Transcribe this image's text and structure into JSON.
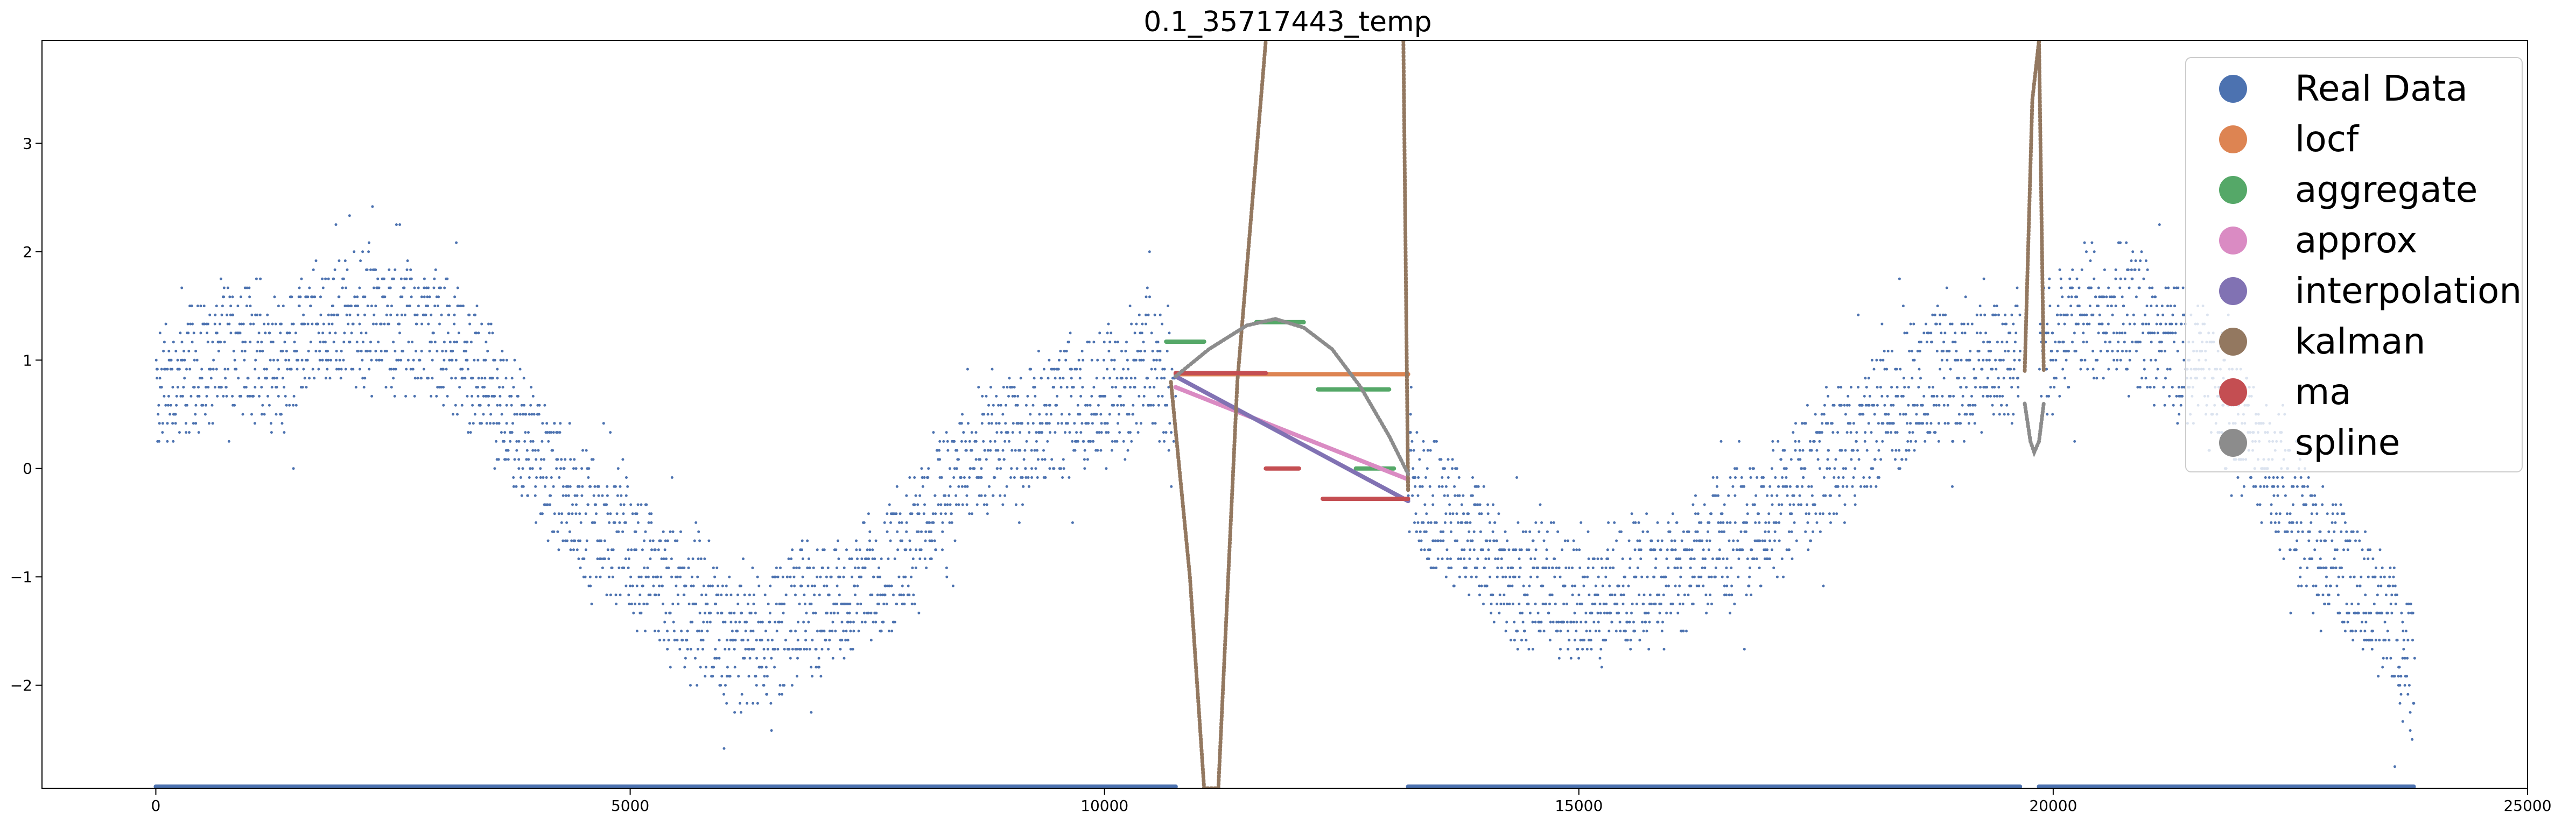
{
  "chart_data": {
    "type": "scatter",
    "title": "0.1_35717443_temp",
    "xlabel": "",
    "ylabel": "",
    "xlim": [
      -1200,
      25000
    ],
    "ylim": [
      -2.95,
      3.95
    ],
    "x_ticks": [
      0,
      5000,
      10000,
      15000,
      20000,
      25000
    ],
    "y_ticks": [
      -2,
      -1,
      0,
      1,
      2,
      3
    ],
    "x_tick_labels": [
      "0",
      "5000",
      "10000",
      "15000",
      "20000",
      "25000"
    ],
    "y_tick_labels": [
      "−2",
      "−1",
      "0",
      "1",
      "2",
      "3"
    ],
    "grid": false,
    "legend_position": "top-right",
    "legend": [
      "Real Data",
      "locf",
      "aggregate",
      "approx",
      "interpolation",
      "kalman",
      "ma",
      "spline"
    ],
    "colors": {
      "Real Data": "#4c72b0",
      "locf": "#dd8452",
      "aggregate": "#55a868",
      "approx": "#da8bc3",
      "interpolation": "#8172b3",
      "kalman": "#937860",
      "ma": "#c44e52",
      "spline": "#8c8c8c"
    },
    "missing_mask_row": {
      "y": -2.95,
      "segments": [
        [
          0,
          10750
        ],
        [
          13200,
          19650
        ],
        [
          19850,
          23800
        ]
      ]
    },
    "real_data_trend": {
      "x": [
        0,
        300,
        600,
        900,
        1300,
        1700,
        2100,
        2500,
        2900,
        3300,
        3700,
        4100,
        4500,
        4900,
        5300,
        5700,
        6100,
        6500,
        6900,
        7300,
        7700,
        8100,
        8500,
        8900,
        9300,
        9700,
        10100,
        10500,
        10750,
        13200,
        13500,
        13900,
        14300,
        14700,
        15100,
        15500,
        15900,
        16300,
        16700,
        17100,
        17500,
        17900,
        18300,
        18700,
        19100,
        19500,
        19900,
        20300,
        20700,
        21100,
        21500,
        21900,
        22300,
        22700,
        23100,
        23500,
        23800
      ],
      "y": [
        0.7,
        0.9,
        1.0,
        1.2,
        0.9,
        1.3,
        1.4,
        1.35,
        1.2,
        1.0,
        0.5,
        0.0,
        -0.4,
        -0.7,
        -1.0,
        -1.4,
        -1.6,
        -1.5,
        -1.3,
        -1.2,
        -0.9,
        -0.5,
        0.0,
        0.2,
        0.4,
        0.6,
        0.7,
        0.9,
        0.8,
        -0.2,
        -0.4,
        -0.6,
        -1.0,
        -1.1,
        -1.2,
        -1.1,
        -1.0,
        -0.8,
        -0.6,
        -0.4,
        0.0,
        0.3,
        0.6,
        0.8,
        0.9,
        1.0,
        1.1,
        1.4,
        1.5,
        1.2,
        1.0,
        0.5,
        0.0,
        -0.6,
        -1.0,
        -1.4,
        -1.9
      ]
    },
    "series": [
      {
        "name": "locf",
        "segments": [
          {
            "x": [
              10750,
              13200
            ],
            "y": [
              0.87,
              0.87
            ]
          }
        ]
      },
      {
        "name": "aggregate",
        "segments": [
          {
            "x": [
              10650,
              11050
            ],
            "y": [
              1.17,
              1.17
            ]
          },
          {
            "x": [
              11600,
              12100
            ],
            "y": [
              1.35,
              1.35
            ]
          },
          {
            "x": [
              12250,
              13000
            ],
            "y": [
              0.73,
              0.73
            ]
          },
          {
            "x": [
              12650,
              13050
            ],
            "y": [
              0.0,
              0.0
            ]
          }
        ]
      },
      {
        "name": "approx",
        "segments": [
          {
            "x": [
              10750,
              13200
            ],
            "y": [
              0.75,
              -0.1
            ]
          }
        ]
      },
      {
        "name": "interpolation",
        "segments": [
          {
            "x": [
              10750,
              13200
            ],
            "y": [
              0.85,
              -0.3
            ]
          }
        ]
      },
      {
        "name": "kalman",
        "segments": [
          {
            "x": [
              10700,
              10900,
              11050,
              11200,
              11400,
              11700
            ],
            "y": [
              0.8,
              -1.0,
              -2.95,
              -2.95,
              0.8,
              3.95
            ]
          },
          {
            "x": [
              13150,
              13200
            ],
            "y": [
              3.95,
              -0.2
            ]
          },
          {
            "x": [
              19700,
              19780,
              19850,
              19900
            ],
            "y": [
              0.9,
              3.4,
              3.95,
              0.9
            ]
          }
        ]
      },
      {
        "name": "ma",
        "segments": [
          {
            "x": [
              10750,
              11700
            ],
            "y": [
              0.88,
              0.88
            ]
          },
          {
            "x": [
              11700,
              12050
            ],
            "y": [
              0.0,
              0.0
            ]
          },
          {
            "x": [
              12300,
              13200
            ],
            "y": [
              -0.28,
              -0.28
            ]
          }
        ]
      },
      {
        "name": "spline",
        "segments": [
          {
            "x": [
              10750,
              11100,
              11500,
              11800,
              12100,
              12400,
              12700,
              13000,
              13200
            ],
            "y": [
              0.85,
              1.1,
              1.32,
              1.38,
              1.3,
              1.1,
              0.75,
              0.3,
              -0.05
            ]
          },
          {
            "x": [
              19700,
              19760,
              19800,
              19850,
              19900
            ],
            "y": [
              0.6,
              0.25,
              0.15,
              0.25,
              0.6
            ]
          }
        ]
      }
    ]
  }
}
